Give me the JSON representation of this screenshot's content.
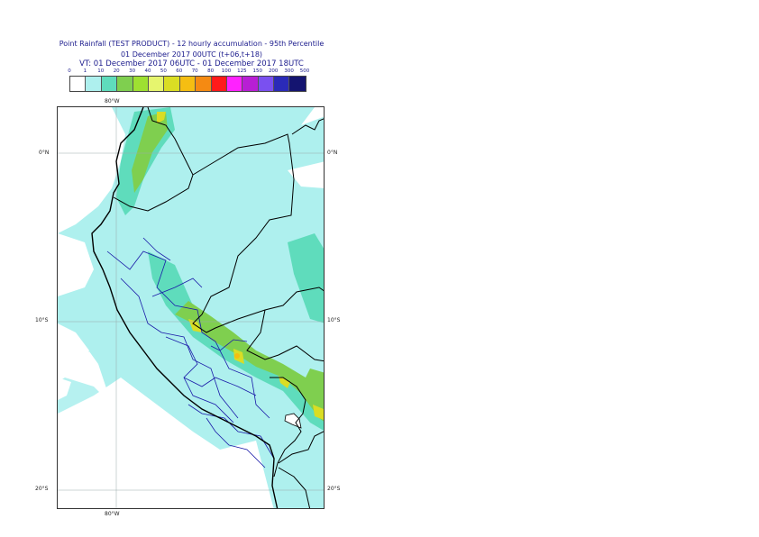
{
  "title": {
    "line1": "Point Rainfall (TEST PRODUCT) - 12 hourly accumulation - 95th Percentile",
    "line2": "01 December 2017 00UTC (t+06,t+18)",
    "line3": "VT: 01 December 2017 06UTC - 01 December 2017 18UTC"
  },
  "legend": {
    "thresholds": [
      "0",
      "1",
      "10",
      "20",
      "30",
      "40",
      "50",
      "60",
      "70",
      "80",
      "100",
      "125",
      "150",
      "200",
      "300",
      "500"
    ],
    "colors": [
      "#ffffff",
      "#aef0ee",
      "#5fdcbc",
      "#7fcf4f",
      "#9ee031",
      "#e6f56e",
      "#dadd24",
      "#f5be12",
      "#f58a12",
      "#ff1a1a",
      "#ff22ff",
      "#b81fd4",
      "#7a50f0",
      "#2a2ab8",
      "#141470"
    ]
  },
  "map": {
    "lon_labels": {
      "top": "80°W",
      "bottom": "80°W"
    },
    "lat_labels": [
      "0°N",
      "10°S",
      "20°S"
    ]
  }
}
